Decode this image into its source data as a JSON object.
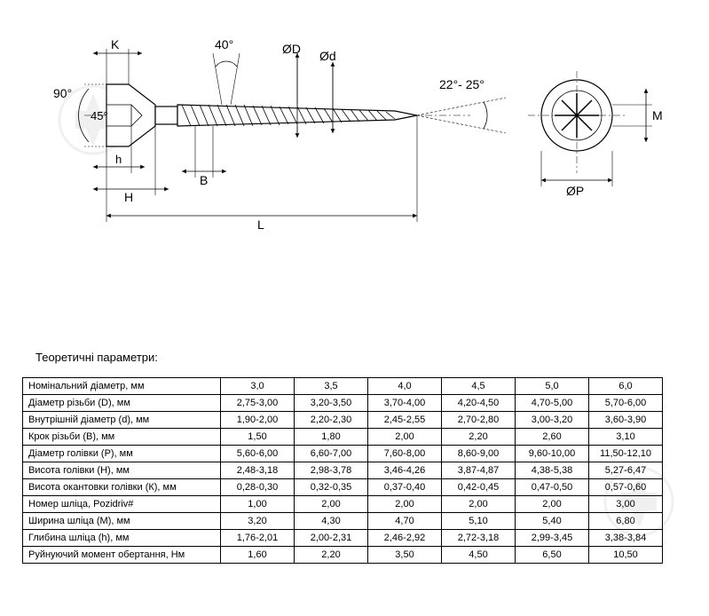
{
  "diagram": {
    "labels": {
      "angle90": "90°",
      "angle45": "45°",
      "angle40": "40°",
      "angle22_25": "22°- 25°",
      "K": "K",
      "h": "h",
      "H": "H",
      "B": "B",
      "L": "L",
      "OD": "ØD",
      "Od": "Ød",
      "M": "M",
      "OP": "ØP"
    },
    "stroke": "#000000",
    "fill": "#ffffff"
  },
  "table": {
    "title": "Теоретичні параметри:",
    "rows": [
      {
        "label": "Номінальний діаметр, мм",
        "values": [
          "3,0",
          "3,5",
          "4,0",
          "4,5",
          "5,0",
          "6,0"
        ]
      },
      {
        "label": "Діаметр різьби (D), мм",
        "values": [
          "2,75-3,00",
          "3,20-3,50",
          "3,70-4,00",
          "4,20-4,50",
          "4,70-5,00",
          "5,70-6,00"
        ]
      },
      {
        "label": "Внутрішній діаметр (d), мм",
        "values": [
          "1,90-2,00",
          "2,20-2,30",
          "2,45-2,55",
          "2,70-2,80",
          "3,00-3,20",
          "3,60-3,90"
        ]
      },
      {
        "label": "Крок різьби (В), мм",
        "values": [
          "1,50",
          "1,80",
          "2,00",
          "2,20",
          "2,60",
          "3,10"
        ]
      },
      {
        "label": "Діаметр голівки (Р), мм",
        "values": [
          "5,60-6,00",
          "6,60-7,00",
          "7,60-8,00",
          "8,60-9,00",
          "9,60-10,00",
          "11,50-12,10"
        ]
      },
      {
        "label": "Висота голівки (Н), мм",
        "values": [
          "2,48-3,18",
          "2,98-3,78",
          "3,46-4,26",
          "3,87-4,87",
          "4,38-5,38",
          "5,27-6,47"
        ]
      },
      {
        "label": "Висота окантовки голівки (К), мм",
        "values": [
          "0,28-0,30",
          "0,32-0,35",
          "0,37-0,40",
          "0,42-0,45",
          "0,47-0,50",
          "0,57-0,60"
        ]
      },
      {
        "label": "Номер шліца, Pozidriv#",
        "values": [
          "1,00",
          "2,00",
          "2,00",
          "2,00",
          "2,00",
          "3,00"
        ]
      },
      {
        "label": "Ширина шліца (М), мм",
        "values": [
          "3,20",
          "4,30",
          "4,70",
          "5,10",
          "5,40",
          "6,80"
        ]
      },
      {
        "label": "Глибина шліца (h), мм",
        "values": [
          "1,76-2,01",
          "2,00-2,31",
          "2,46-2,92",
          "2,72-3,18",
          "2,99-3,45",
          "3,38-3,84"
        ]
      },
      {
        "label": "Руйнуючий момент обертання, Нм",
        "values": [
          "1,60",
          "2,20",
          "3,50",
          "4,50",
          "6,50",
          "10,50"
        ]
      }
    ]
  }
}
